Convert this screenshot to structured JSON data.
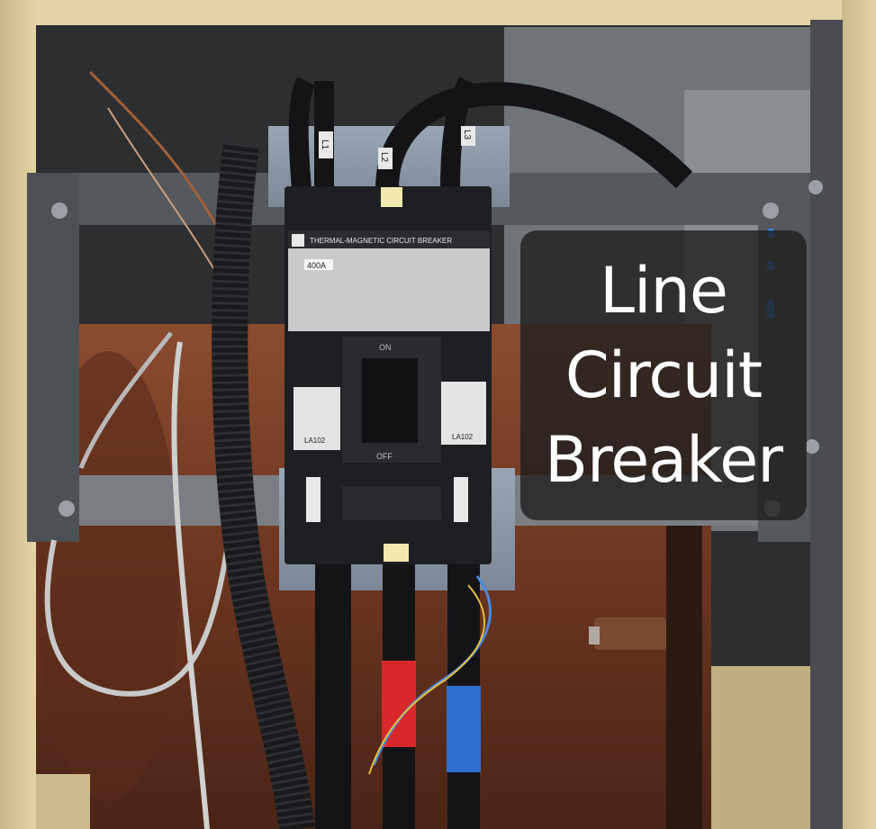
{
  "caption": {
    "line1": "Line",
    "line2": "Circuit",
    "line3": "Breaker"
  },
  "breaker": {
    "header": "THERMAL-MAGNETIC CIRCUIT BREAKER",
    "rating": "400A",
    "on_label": "ON",
    "off_label": "OFF",
    "left_model": "LA102",
    "right_model": "LA102"
  },
  "wire_labels": [
    "L1",
    "L2",
    "L3"
  ],
  "colors": {
    "cabinet": "#d9c79a",
    "frame": "#4a4c50",
    "copper_tank": "#6e3a24",
    "breaker_body": "#1e1f22",
    "tape_red": "#d8282a",
    "tape_blue": "#2e6fd0",
    "caption_bg": "#1e1e1e"
  }
}
